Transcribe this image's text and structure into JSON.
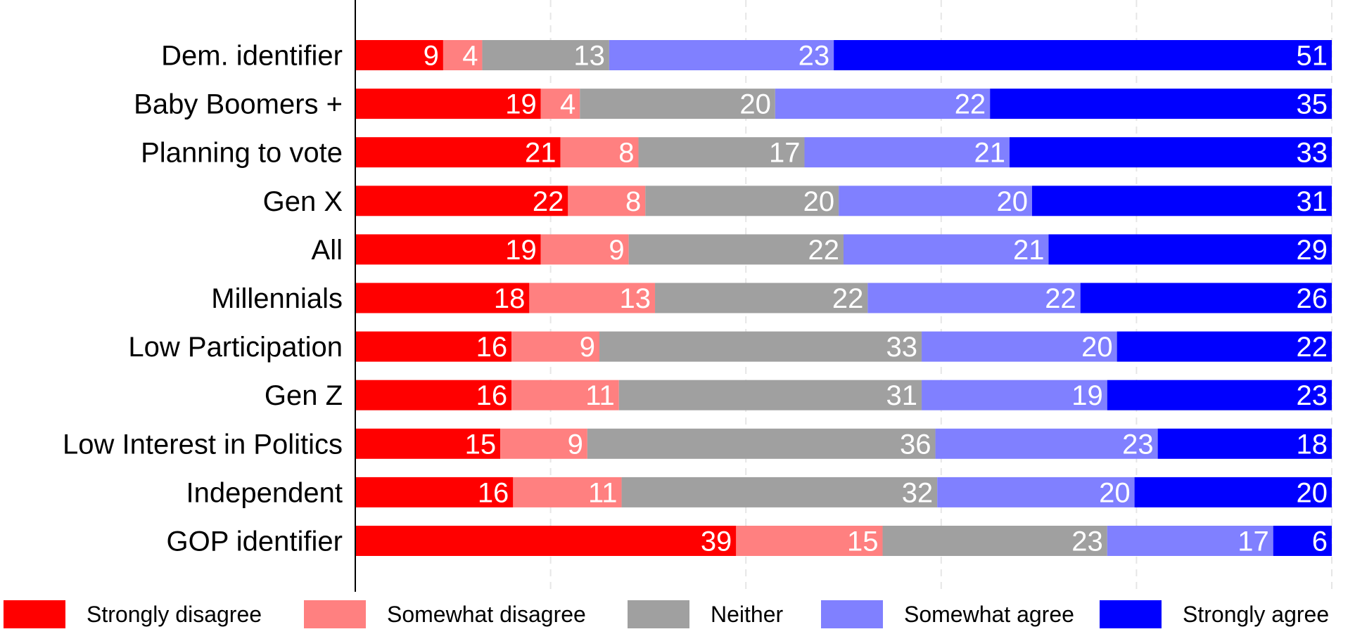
{
  "chart_data": {
    "type": "bar",
    "orientation": "horizontal",
    "stacked": true,
    "categories": [
      "Dem. identifier",
      "Baby Boomers +",
      "Planning to vote",
      "Gen X",
      "All",
      "Millennials",
      "Low Participation",
      "Gen Z",
      "Low Interest in Politics",
      "Independent",
      "GOP identifier"
    ],
    "series": [
      {
        "name": "Strongly disagree",
        "color": "#ff0000",
        "values": [
          9,
          19,
          21,
          22,
          19,
          18,
          16,
          16,
          15,
          16,
          39
        ]
      },
      {
        "name": "Somewhat disagree",
        "color": "#ff8080",
        "values": [
          4,
          4,
          8,
          8,
          9,
          13,
          9,
          11,
          9,
          11,
          15
        ]
      },
      {
        "name": "Neither",
        "color": "#a0a0a0",
        "values": [
          13,
          20,
          17,
          20,
          22,
          22,
          33,
          31,
          36,
          32,
          23
        ]
      },
      {
        "name": "Somewhat agree",
        "color": "#8080ff",
        "values": [
          23,
          22,
          21,
          20,
          21,
          22,
          20,
          19,
          23,
          20,
          17
        ]
      },
      {
        "name": "Strongly agree",
        "color": "#0000ff",
        "values": [
          51,
          35,
          33,
          31,
          29,
          26,
          22,
          23,
          18,
          20,
          6
        ]
      }
    ],
    "xlim": [
      0,
      100
    ],
    "grid": true,
    "legend_position": "bottom",
    "title": "",
    "xlabel": "",
    "ylabel": ""
  }
}
